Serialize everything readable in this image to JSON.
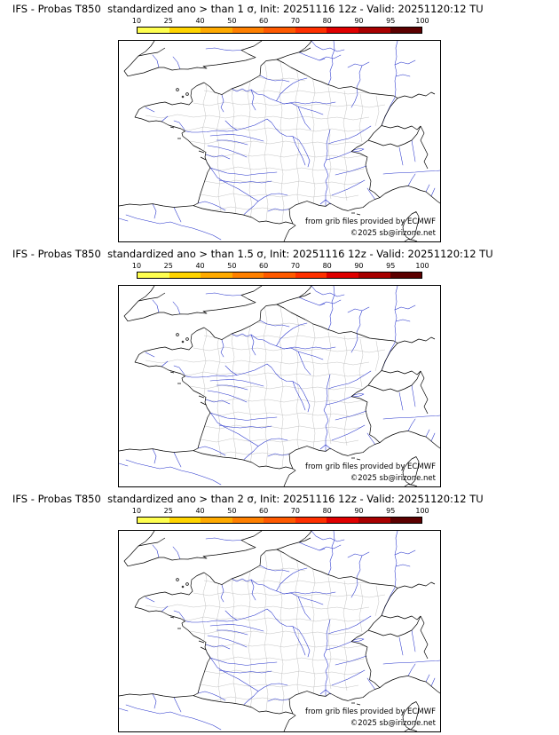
{
  "panels": [
    {
      "title": "IFS - Probas T850  standardized ano > than 1 σ, Init: 20251116 12z - Valid: 20251120:12 TU",
      "credit_line1": "from grib files provided by ECMWF",
      "credit_line2": "©2025 sb@irizone.net"
    },
    {
      "title": "IFS - Probas T850  standardized ano > than 1.5 σ, Init: 20251116 12z - Valid: 20251120:12 TU",
      "credit_line1": "from grib files provided by ECMWF",
      "credit_line2": "©2025 sb@irizone.net"
    },
    {
      "title": "IFS - Probas T850  standardized ano > than 2 σ, Init: 20251116 12z - Valid: 20251120:12 TU",
      "credit_line1": "from grib files provided by ECMWF",
      "credit_line2": "©2025 sb@irizone.net"
    }
  ],
  "colorbar": {
    "tick_labels": [
      "10",
      "25",
      "40",
      "50",
      "60",
      "70",
      "80",
      "90",
      "95",
      "100"
    ],
    "segment_colors": [
      "#ffff50",
      "#ffd400",
      "#ffaa00",
      "#ff8000",
      "#ff5a00",
      "#ff3000",
      "#e00000",
      "#a80000",
      "#5c0000"
    ],
    "border_color": "#000000"
  },
  "map": {
    "coastline_color": "#000000",
    "river_color": "#2633cc",
    "department_border_color": "#bcbcbc"
  }
}
